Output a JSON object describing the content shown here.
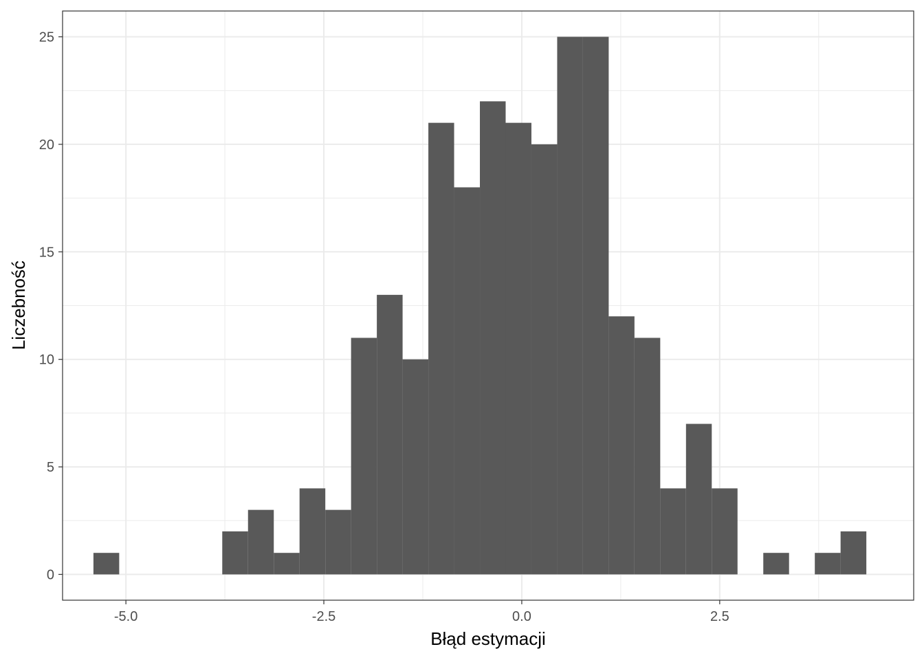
{
  "chart_data": {
    "type": "bar",
    "subtype": "histogram",
    "xlabel": "Błąd estymacji",
    "ylabel": "Liczebność",
    "xlim": [
      -5.8,
      4.95
    ],
    "ylim": [
      -1.2,
      26.2
    ],
    "x_ticks": [
      -5.0,
      -2.5,
      0.0,
      2.5
    ],
    "x_tick_labels": [
      "-5.0",
      "-2.5",
      "0.0",
      "2.5"
    ],
    "y_ticks": [
      0,
      5,
      10,
      15,
      20,
      25
    ],
    "y_tick_labels": [
      "0",
      "5",
      "10",
      "15",
      "20",
      "25"
    ],
    "bin_start": -5.41,
    "bin_width": 0.3254,
    "values": [
      1,
      0,
      0,
      0,
      0,
      2,
      3,
      1,
      4,
      3,
      11,
      13,
      10,
      21,
      18,
      22,
      21,
      20,
      25,
      25,
      12,
      11,
      4,
      7,
      4,
      0,
      1,
      0,
      1,
      2
    ],
    "bar_color": "#595959",
    "grid": true,
    "legend": "none"
  }
}
